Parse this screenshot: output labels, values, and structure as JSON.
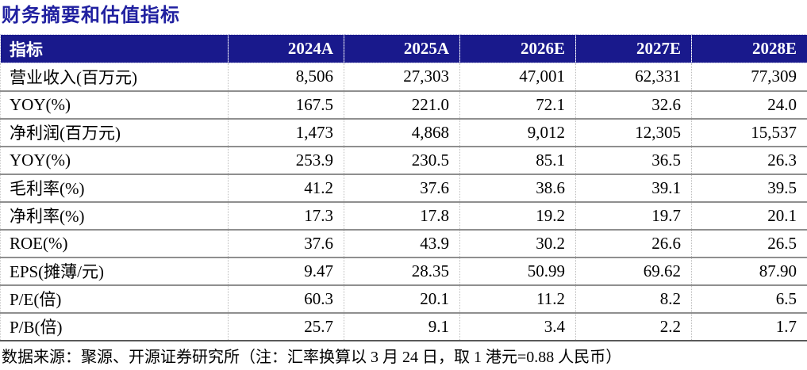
{
  "title": "财务摘要和估值指标",
  "colors": {
    "title_navy": "#2020a0",
    "header_bg_navy": "#19198c",
    "header_text": "#ffffff",
    "row_separator": "#8f8f8f",
    "table_bottom_border": "#595959",
    "body_text": "#000000"
  },
  "table": {
    "header": [
      "指标",
      "2024A",
      "2025A",
      "2026E",
      "2027E",
      "2028E"
    ],
    "rows": [
      {
        "label": "营业收入(百万元)",
        "values": [
          "8,506",
          "27,303",
          "47,001",
          "62,331",
          "77,309"
        ]
      },
      {
        "label": "YOY(%)",
        "values": [
          "167.5",
          "221.0",
          "72.1",
          "32.6",
          "24.0"
        ]
      },
      {
        "label": "净利润(百万元)",
        "values": [
          "1,473",
          "4,868",
          "9,012",
          "12,305",
          "15,537"
        ]
      },
      {
        "label": "YOY(%)",
        "values": [
          "253.9",
          "230.5",
          "85.1",
          "36.5",
          "26.3"
        ]
      },
      {
        "label": "毛利率(%)",
        "values": [
          "41.2",
          "37.6",
          "38.6",
          "39.1",
          "39.5"
        ]
      },
      {
        "label": "净利率(%)",
        "values": [
          "17.3",
          "17.8",
          "19.2",
          "19.7",
          "20.1"
        ]
      },
      {
        "label": "ROE(%)",
        "values": [
          "37.6",
          "43.9",
          "30.2",
          "26.6",
          "26.5"
        ]
      },
      {
        "label": "EPS(摊薄/元)",
        "values": [
          "9.47",
          "28.35",
          "50.99",
          "69.62",
          "87.90"
        ]
      },
      {
        "label": "P/E(倍)",
        "values": [
          "60.3",
          "20.1",
          "11.2",
          "8.2",
          "6.5"
        ]
      },
      {
        "label": "P/B(倍)",
        "values": [
          "25.7",
          "9.1",
          "3.4",
          "2.2",
          "1.7"
        ]
      }
    ]
  },
  "footnote": "数据来源：聚源、开源证券研究所（注：汇率换算以 3 月 24 日，取 1 港元=0.88 人民币）"
}
